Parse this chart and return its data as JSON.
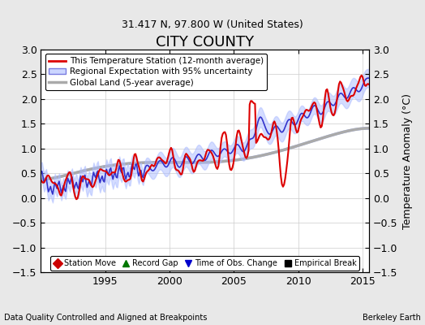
{
  "title": "CITY COUNTY",
  "subtitle": "31.417 N, 97.800 W (United States)",
  "ylabel": "Temperature Anomaly (°C)",
  "footer_left": "Data Quality Controlled and Aligned at Breakpoints",
  "footer_right": "Berkeley Earth",
  "xlim": [
    1990,
    2015.5
  ],
  "ylim": [
    -1.5,
    3.0
  ],
  "yticks": [
    -1.5,
    -1.0,
    -0.5,
    0.0,
    0.5,
    1.0,
    1.5,
    2.0,
    2.5,
    3.0
  ],
  "xticks": [
    1995,
    2000,
    2005,
    2010,
    2015
  ],
  "legend_items": [
    {
      "label": "This Temperature Station (12-month average)",
      "color": "#dd0000",
      "lw": 2.0
    },
    {
      "label": "Regional Expectation with 95% uncertainty",
      "color": "#3333cc",
      "lw": 1.5
    },
    {
      "label": "Global Land (5-year average)",
      "color": "#aaaaaa",
      "lw": 2.5
    }
  ],
  "marker_legend": [
    {
      "label": "Station Move",
      "marker": "D",
      "color": "#cc0000"
    },
    {
      "label": "Record Gap",
      "marker": "^",
      "color": "#007700"
    },
    {
      "label": "Time of Obs. Change",
      "marker": "v",
      "color": "#0000cc"
    },
    {
      "label": "Empirical Break",
      "marker": "s",
      "color": "#000000"
    }
  ],
  "bg_color": "#e8e8e8",
  "plot_bg_color": "#ffffff",
  "grid_color": "#cccccc",
  "uncertainty_color_regional": "#aabbff",
  "uncertainty_color_global": "#dddddd"
}
